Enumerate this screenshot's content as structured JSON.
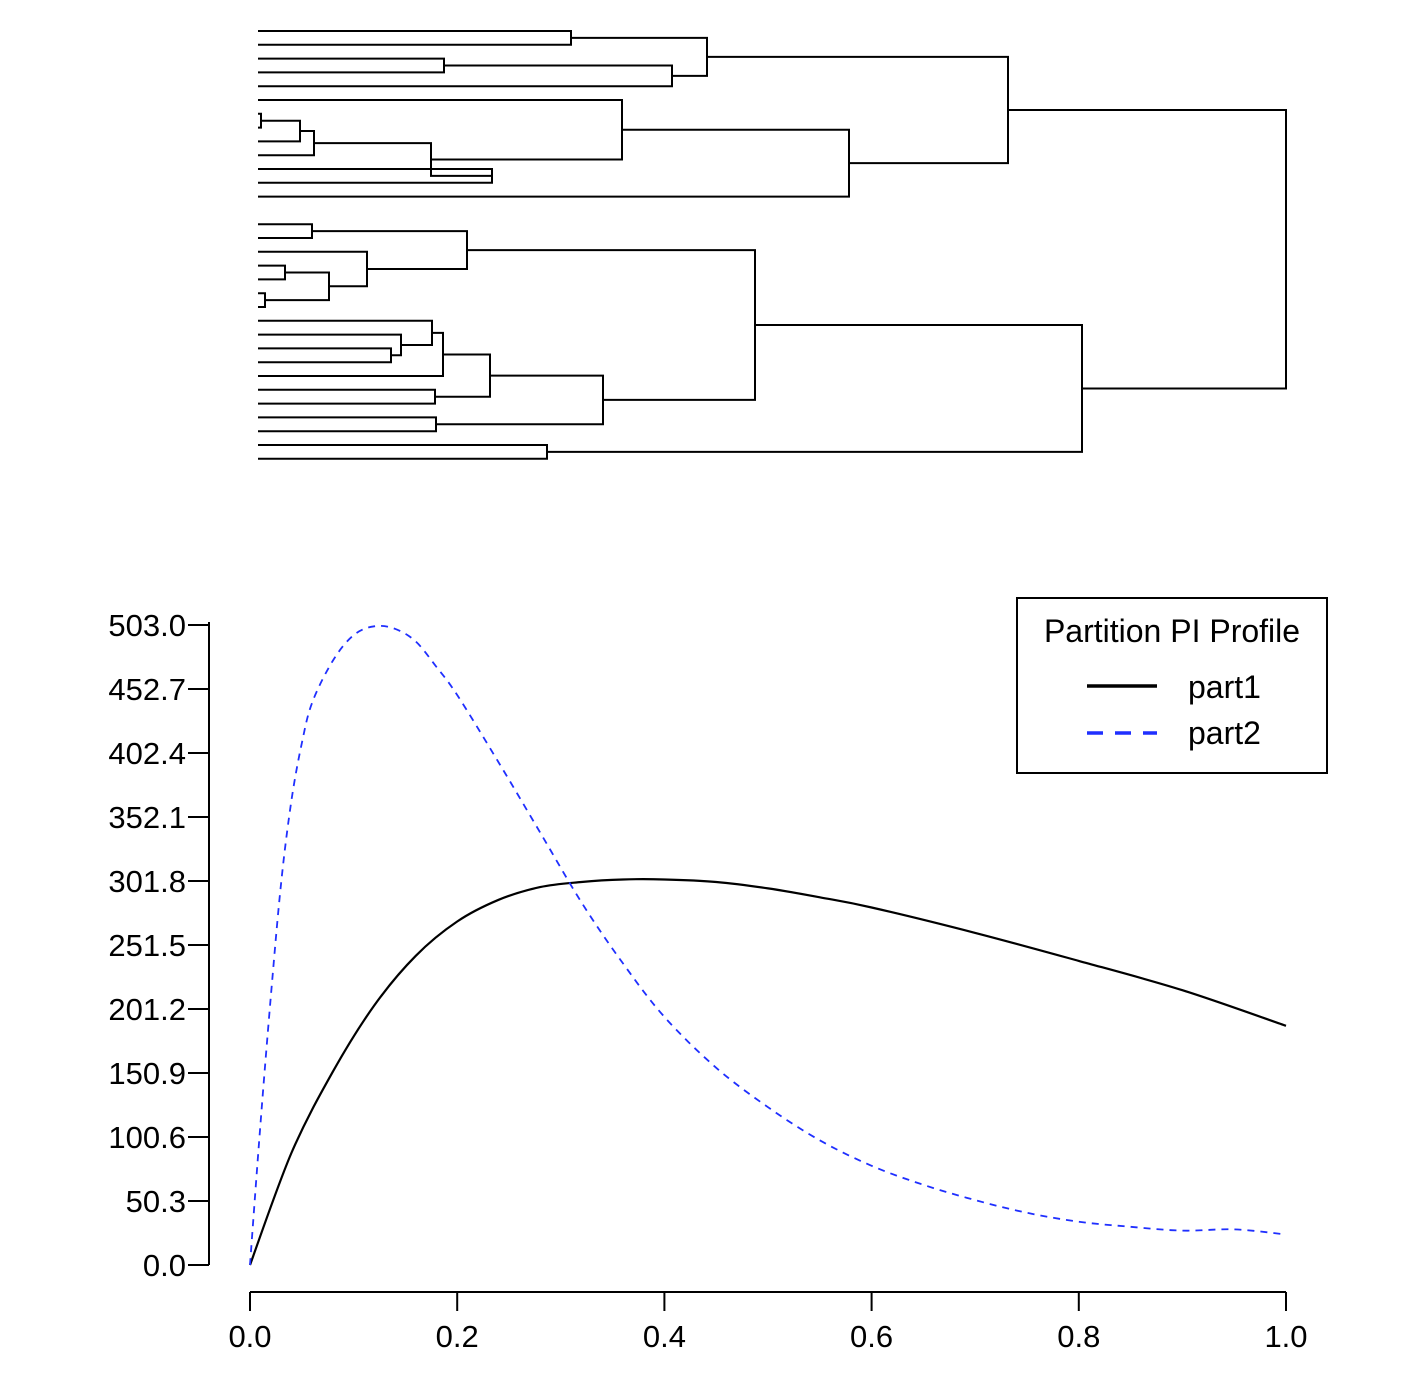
{
  "dendrogram": {
    "orientation": "horizontal",
    "leaf_count": 32
  },
  "chart_data": {
    "type": "line",
    "x_range": [
      0.0,
      1.0
    ],
    "ylim": [
      0.0,
      503.0
    ],
    "x_ticks": [
      "0.0",
      "0.2",
      "0.4",
      "0.6",
      "0.8",
      "1.0"
    ],
    "y_ticks": [
      "0.0",
      "50.3",
      "100.6",
      "150.9",
      "201.2",
      "251.5",
      "301.8",
      "352.1",
      "402.4",
      "452.7",
      "503.0"
    ],
    "legend": {
      "title": "Partition PI Profile",
      "position": "top-right"
    },
    "series": [
      {
        "name": "part1",
        "color": "#000000",
        "dash": "solid",
        "x": [
          0,
          0.04,
          0.08,
          0.12,
          0.16,
          0.2,
          0.24,
          0.28,
          0.32,
          0.36,
          0.4,
          0.45,
          0.5,
          0.55,
          0.6,
          0.7,
          0.8,
          0.9,
          1.0
        ],
        "y": [
          0,
          88,
          152,
          204,
          243,
          270,
          287,
          297,
          301,
          303,
          303,
          301,
          296,
          289,
          281,
          261,
          239,
          216,
          188
        ]
      },
      {
        "name": "part2",
        "color": "#1f2fff",
        "dash": "dashed",
        "x": [
          0,
          0.01,
          0.02,
          0.03,
          0.04,
          0.05,
          0.06,
          0.08,
          0.1,
          0.12,
          0.14,
          0.16,
          0.18,
          0.2,
          0.24,
          0.28,
          0.32,
          0.36,
          0.4,
          0.45,
          0.5,
          0.55,
          0.6,
          0.65,
          0.7,
          0.75,
          0.8,
          0.85,
          0.9,
          0.95,
          1.0
        ],
        "y": [
          0,
          110,
          210,
          300,
          365,
          410,
          442,
          475,
          495,
          502,
          500,
          490,
          470,
          448,
          395,
          340,
          285,
          237,
          195,
          155,
          124,
          98,
          78,
          63,
          51,
          41,
          34,
          30,
          27,
          28,
          24
        ]
      }
    ]
  }
}
